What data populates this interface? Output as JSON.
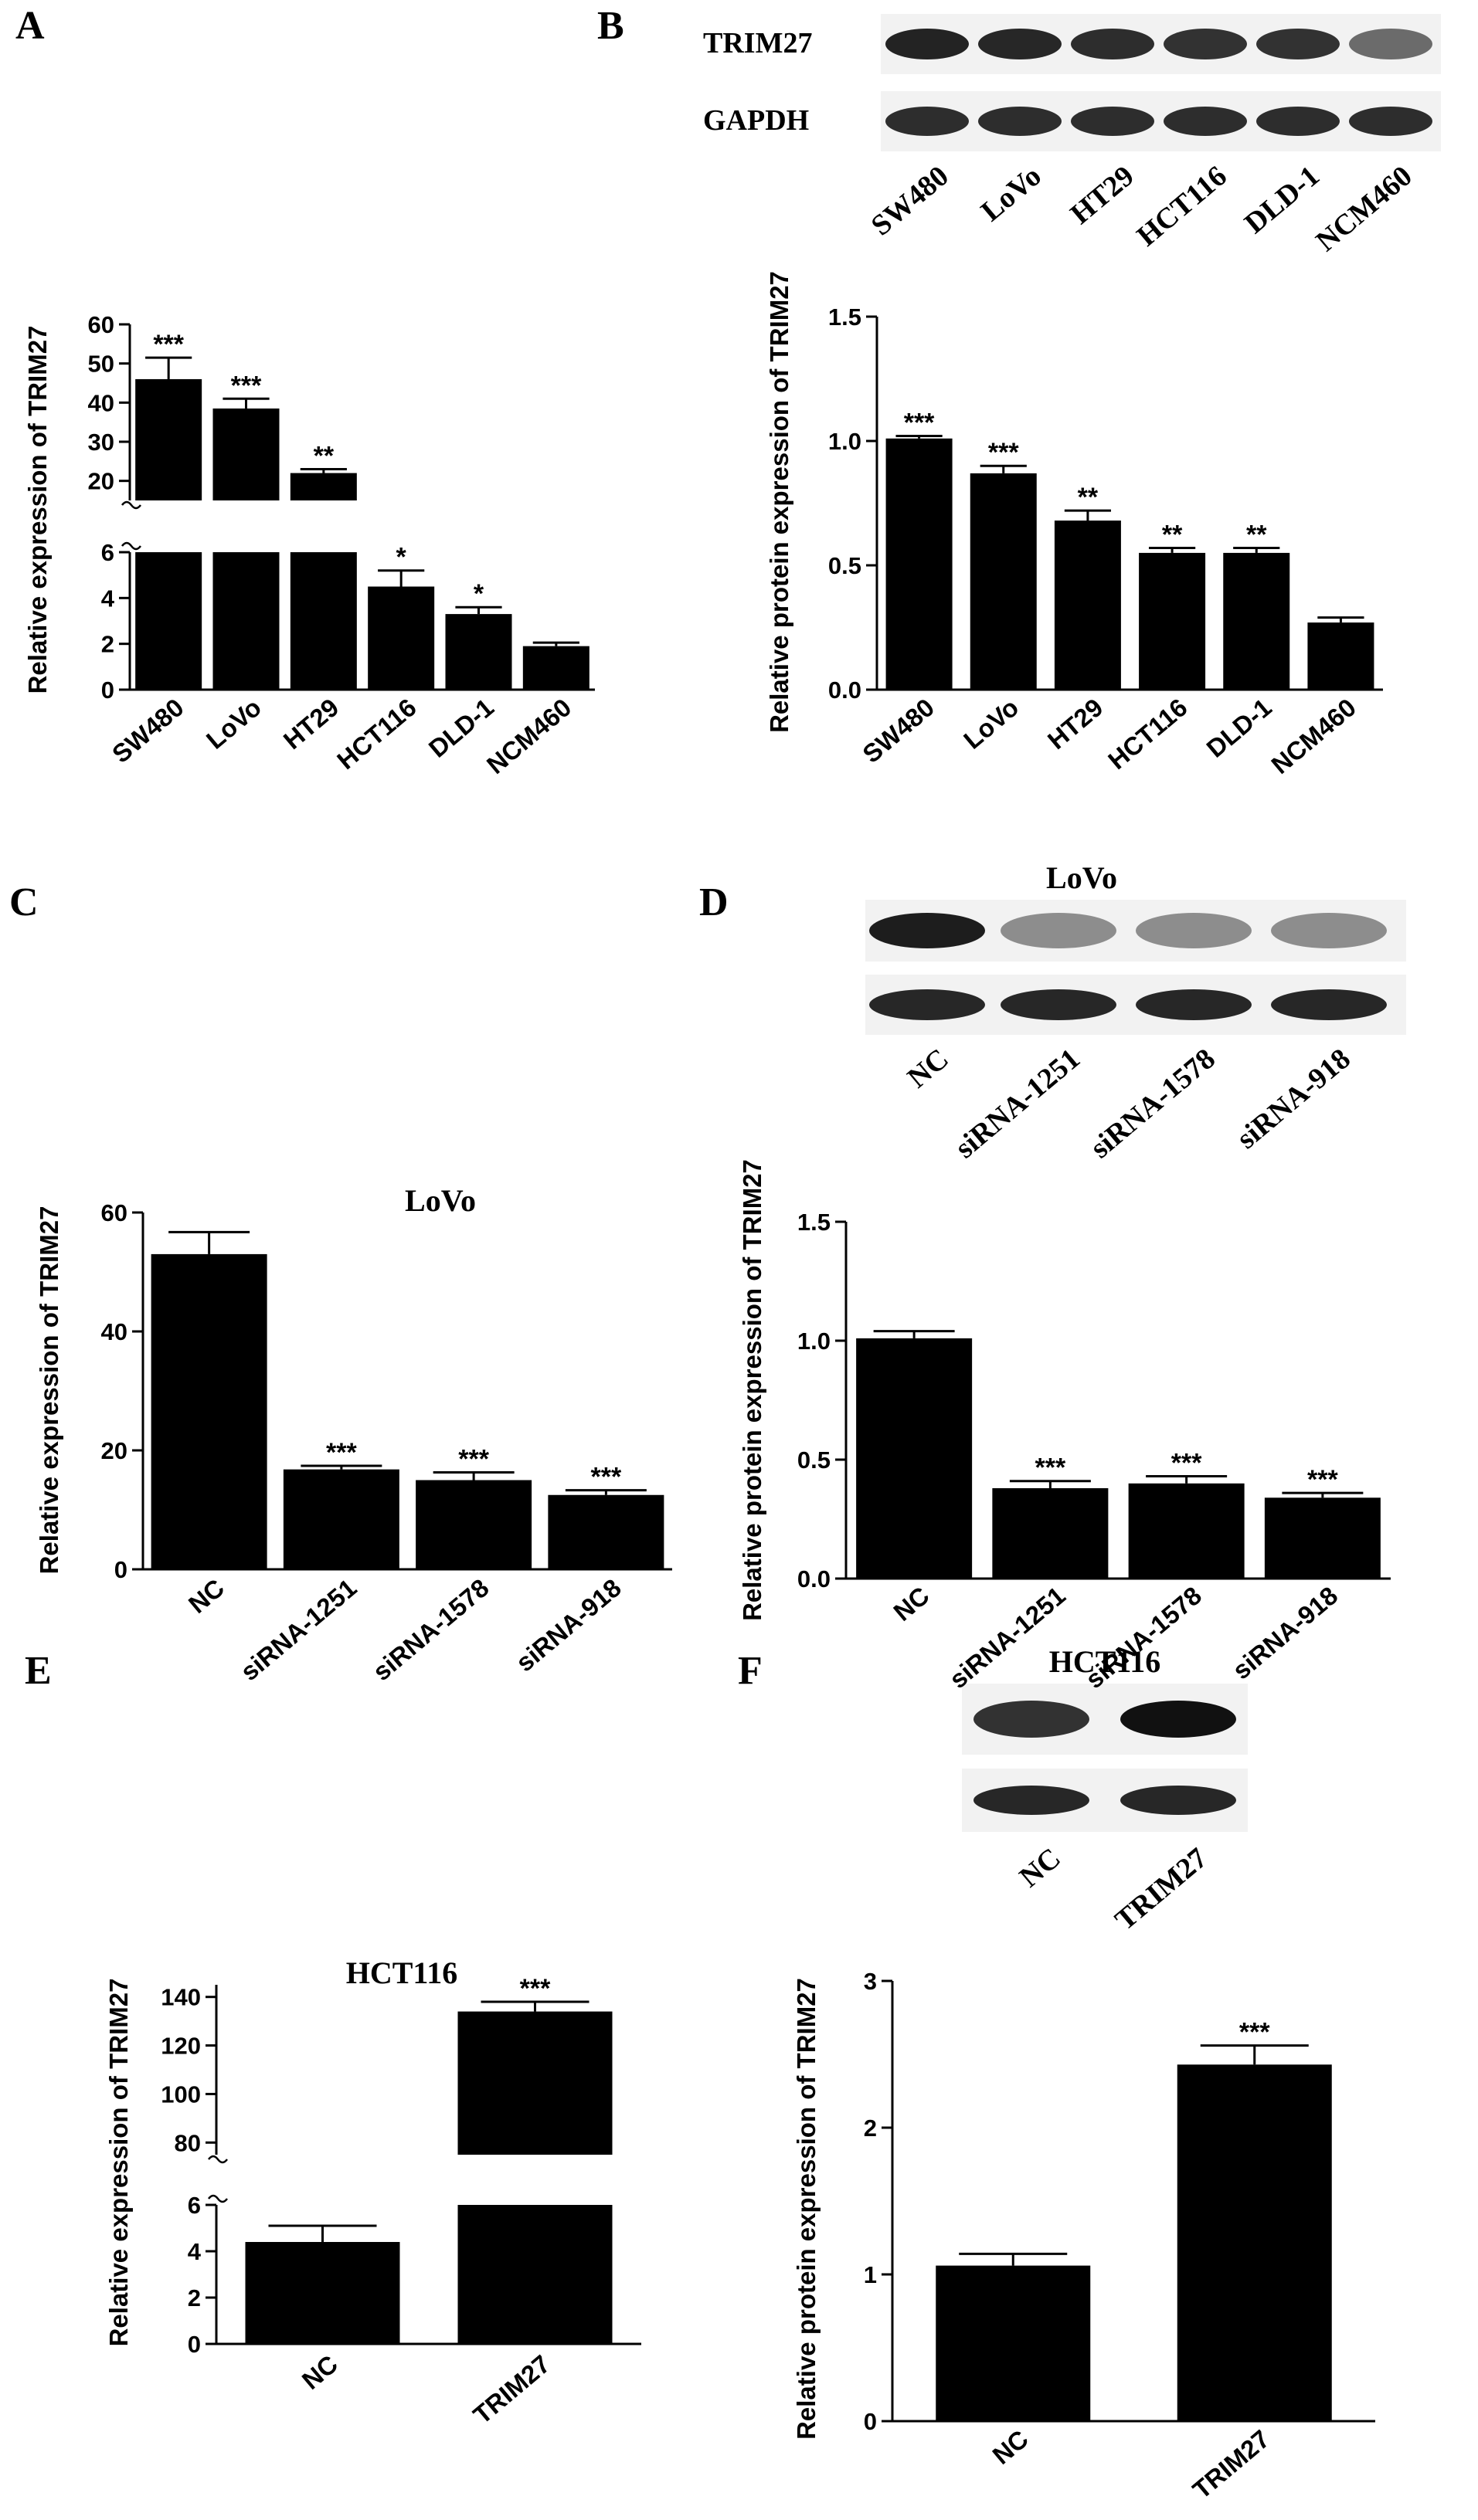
{
  "panels": {
    "A": "A",
    "B": "B",
    "C": "C",
    "D": "D",
    "E": "E",
    "F": "F"
  },
  "blots": {
    "B": {
      "rows": [
        "TRIM27",
        "GAPDH"
      ],
      "lanes": [
        "SW480",
        "LoVo",
        "HT29",
        "HCT116",
        "DLD-1",
        "NCM460"
      ]
    },
    "D": {
      "title": "LoVo",
      "lanes": [
        "NC",
        "siRNA-1251",
        "siRNA-1578",
        "siRNA-918"
      ]
    },
    "F": {
      "title": "HCT116",
      "lanes": [
        "NC",
        "TRIM27"
      ]
    }
  },
  "chart_data": [
    {
      "id": "A",
      "type": "bar",
      "title": "",
      "ylabel": "Relative expression of TRIM27",
      "categories": [
        "SW480",
        "LoVo",
        "HT29",
        "HCT116",
        "DLD-1",
        "NCM460"
      ],
      "values": [
        46,
        38.5,
        22,
        4.5,
        3.3,
        1.9
      ],
      "errors": [
        5.5,
        2.5,
        1.0,
        0.7,
        0.3,
        0.15
      ],
      "significance": [
        "***",
        "***",
        "**",
        "*",
        "*",
        ""
      ],
      "y_axis_break": true,
      "ylim_lower": [
        0,
        6
      ],
      "ylim_upper": [
        15,
        60
      ],
      "yticks_lower": [
        0,
        2,
        4,
        6
      ],
      "yticks_upper": [
        20,
        30,
        40,
        50,
        60
      ]
    },
    {
      "id": "B",
      "type": "bar",
      "title": "",
      "ylabel": "Relative protein expression of TRIM27",
      "categories": [
        "SW480",
        "LoVo",
        "HT29",
        "HCT116",
        "DLD-1",
        "NCM460"
      ],
      "values": [
        1.01,
        0.87,
        0.68,
        0.55,
        0.55,
        0.27
      ],
      "errors": [
        0.01,
        0.03,
        0.04,
        0.02,
        0.02,
        0.02
      ],
      "significance": [
        "***",
        "***",
        "**",
        "**",
        "**",
        ""
      ],
      "ylim": [
        0,
        1.5
      ],
      "yticks": [
        0.0,
        0.5,
        1.0,
        1.5
      ]
    },
    {
      "id": "C",
      "type": "bar",
      "title": "LoVo",
      "ylabel": "Relative expression of TRIM27",
      "categories": [
        "NC",
        "siRNA-1251",
        "siRNA-1578",
        "siRNA-918"
      ],
      "values": [
        53,
        16.8,
        15,
        12.5
      ],
      "errors": [
        3.7,
        0.6,
        1.3,
        0.8
      ],
      "significance": [
        "",
        "***",
        "***",
        "***"
      ],
      "ylim": [
        0,
        60
      ],
      "yticks": [
        0,
        20,
        40,
        60
      ]
    },
    {
      "id": "D",
      "type": "bar",
      "title": "",
      "ylabel": "Relative protein expression of TRIM27",
      "categories": [
        "NC",
        "siRNA-1251",
        "siRNA-1578",
        "siRNA-918"
      ],
      "values": [
        1.01,
        0.38,
        0.4,
        0.34
      ],
      "errors": [
        0.03,
        0.03,
        0.03,
        0.02
      ],
      "significance": [
        "",
        "***",
        "***",
        "***"
      ],
      "ylim": [
        0,
        1.5
      ],
      "yticks": [
        0.0,
        0.5,
        1.0,
        1.5
      ]
    },
    {
      "id": "E",
      "type": "bar",
      "title": "HCT116",
      "ylabel": "Relative expression of TRIM27",
      "categories": [
        "NC",
        "TRIM27"
      ],
      "values": [
        4.4,
        134
      ],
      "errors": [
        0.7,
        4
      ],
      "significance": [
        "",
        "***"
      ],
      "y_axis_break": true,
      "ylim_lower": [
        0,
        6
      ],
      "ylim_upper": [
        75,
        145
      ],
      "yticks_lower": [
        0,
        2,
        4,
        6
      ],
      "yticks_upper": [
        80,
        100,
        120,
        140
      ]
    },
    {
      "id": "F",
      "type": "bar",
      "title": "",
      "ylabel": "Relative protein expression of TRIM27",
      "categories": [
        "NC",
        "TRIM27"
      ],
      "values": [
        1.06,
        2.43
      ],
      "errors": [
        0.08,
        0.13
      ],
      "significance": [
        "",
        "***"
      ],
      "ylim": [
        0,
        3
      ],
      "yticks": [
        0,
        1,
        2,
        3
      ]
    }
  ]
}
